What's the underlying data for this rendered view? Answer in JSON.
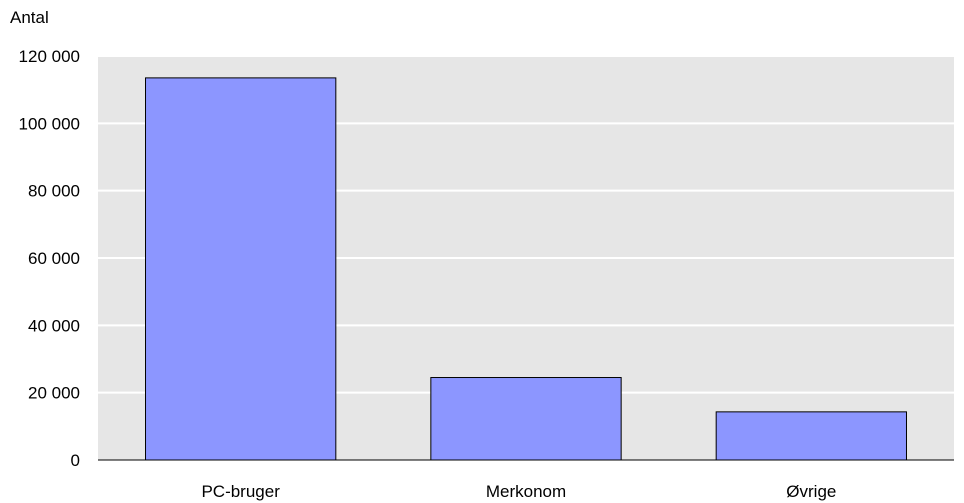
{
  "chart_data": {
    "type": "bar",
    "ylabel": "Antal",
    "categories": [
      "PC-bruger",
      "Merkonom",
      "Øvrige"
    ],
    "values": [
      113500,
      24500,
      14300
    ],
    "ylim": [
      0,
      120000
    ],
    "yticks": [
      0,
      20000,
      40000,
      60000,
      80000,
      100000,
      120000
    ],
    "ytick_labels": [
      "0",
      "20 000",
      "40 000",
      "60 000",
      "80 000",
      "100 000",
      "120 000"
    ],
    "grid": true,
    "colors": {
      "bar": "#8c96ff",
      "bar_border": "#000000",
      "plot_bg": "#e6e6e6",
      "grid": "#ffffff"
    }
  }
}
